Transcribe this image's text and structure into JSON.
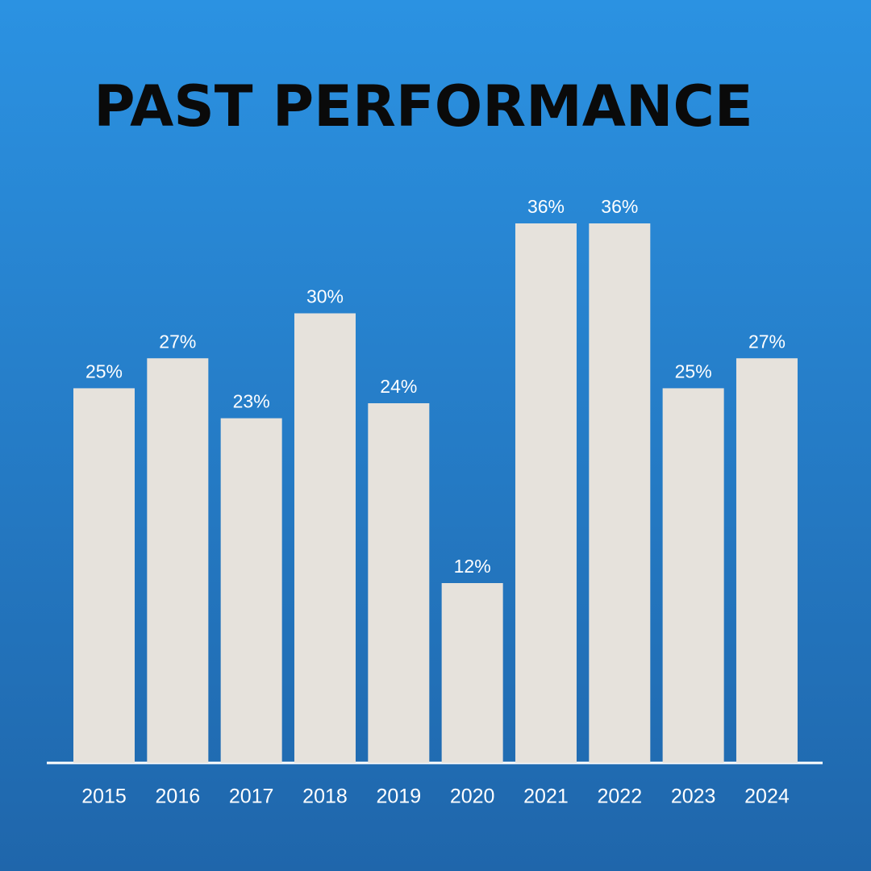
{
  "chart_data": {
    "type": "bar",
    "title": "PAST PERFORMANCE",
    "categories": [
      "2015",
      "2016",
      "2017",
      "2018",
      "2019",
      "2020",
      "2021",
      "2022",
      "2023",
      "2024"
    ],
    "values": [
      25,
      27,
      23,
      30,
      24,
      12,
      36,
      36,
      25,
      27
    ],
    "value_labels": [
      "25%",
      "27%",
      "23%",
      "30%",
      "24%",
      "12%",
      "36%",
      "36%",
      "25%",
      "27%"
    ],
    "color": "#e6e2dc"
  }
}
